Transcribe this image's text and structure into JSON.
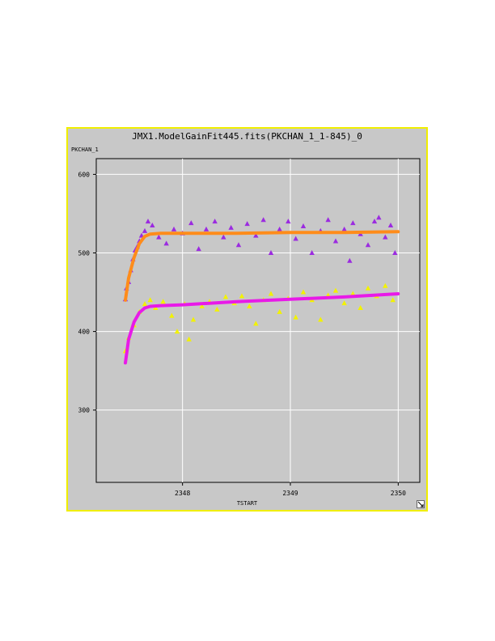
{
  "window": {
    "title": "JMX1.ModelGainFit445.fits(PKCHAN_1_1-845)_0",
    "ylabel": "PKCHAN_1",
    "xlabel": "TSTART"
  },
  "icons": {
    "resize": "resize-corner-icon"
  },
  "colors": {
    "frame_border": "#f0ee00",
    "panel_bg": "#c8c8c8",
    "upper_points": "#9b2be0",
    "upper_fit": "#ff8c1a",
    "lower_points": "#f2f200",
    "lower_fit": "#e81ae8"
  },
  "chart_data": {
    "type": "scatter",
    "title": "JMX1.ModelGainFit445.fits(PKCHAN_1_1-845)_0",
    "xlabel": "TSTART",
    "ylabel": "PKCHAN_1",
    "xlim": [
      2347.2,
      2350.2
    ],
    "ylim": [
      208,
      620
    ],
    "x_ticks": [
      2348,
      2349,
      2350
    ],
    "y_ticks": [
      300,
      400,
      500,
      600
    ],
    "grid": true,
    "series": [
      {
        "color": "#9b2be0",
        "marker": "triangle",
        "points": [
          [
            2347.47,
            441
          ],
          [
            2347.48,
            455
          ],
          [
            2347.5,
            463
          ],
          [
            2347.52,
            478
          ],
          [
            2347.54,
            492
          ],
          [
            2347.56,
            503
          ],
          [
            2347.58,
            508
          ],
          [
            2347.6,
            515
          ],
          [
            2347.62,
            522
          ],
          [
            2347.65,
            528
          ],
          [
            2347.68,
            540
          ],
          [
            2347.72,
            535
          ],
          [
            2347.78,
            520
          ],
          [
            2347.85,
            512
          ],
          [
            2347.92,
            530
          ],
          [
            2348.0,
            525
          ],
          [
            2348.08,
            538
          ],
          [
            2348.15,
            505
          ],
          [
            2348.22,
            530
          ],
          [
            2348.3,
            540
          ],
          [
            2348.38,
            520
          ],
          [
            2348.45,
            532
          ],
          [
            2348.52,
            510
          ],
          [
            2348.6,
            537
          ],
          [
            2348.68,
            522
          ],
          [
            2348.75,
            542
          ],
          [
            2348.82,
            500
          ],
          [
            2348.9,
            530
          ],
          [
            2348.98,
            540
          ],
          [
            2349.05,
            518
          ],
          [
            2349.12,
            534
          ],
          [
            2349.2,
            500
          ],
          [
            2349.28,
            528
          ],
          [
            2349.35,
            542
          ],
          [
            2349.42,
            515
          ],
          [
            2349.5,
            530
          ],
          [
            2349.55,
            490
          ],
          [
            2349.58,
            538
          ],
          [
            2349.65,
            524
          ],
          [
            2349.72,
            510
          ],
          [
            2349.78,
            540
          ],
          [
            2349.82,
            545
          ],
          [
            2349.88,
            520
          ],
          [
            2349.93,
            535
          ],
          [
            2349.97,
            500
          ]
        ]
      },
      {
        "color": "#ff8c1a",
        "marker": "line",
        "points": [
          [
            2347.47,
            440
          ],
          [
            2347.5,
            468
          ],
          [
            2347.55,
            494
          ],
          [
            2347.6,
            512
          ],
          [
            2347.65,
            521
          ],
          [
            2347.7,
            524
          ],
          [
            2347.8,
            525
          ],
          [
            2348.0,
            525
          ],
          [
            2348.5,
            525
          ],
          [
            2349.0,
            526
          ],
          [
            2349.5,
            526
          ],
          [
            2350.0,
            527
          ]
        ]
      },
      {
        "color": "#f2f200",
        "marker": "triangle",
        "points": [
          [
            2347.47,
            375
          ],
          [
            2347.5,
            392
          ],
          [
            2347.55,
            408
          ],
          [
            2347.6,
            425
          ],
          [
            2347.65,
            435
          ],
          [
            2347.7,
            440
          ],
          [
            2347.75,
            430
          ],
          [
            2347.82,
            438
          ],
          [
            2347.9,
            420
          ],
          [
            2347.95,
            400
          ],
          [
            2348.02,
            435
          ],
          [
            2348.06,
            390
          ],
          [
            2348.1,
            415
          ],
          [
            2348.18,
            432
          ],
          [
            2348.25,
            438
          ],
          [
            2348.32,
            428
          ],
          [
            2348.4,
            444
          ],
          [
            2348.48,
            436
          ],
          [
            2348.55,
            445
          ],
          [
            2348.62,
            432
          ],
          [
            2348.68,
            410
          ],
          [
            2348.75,
            440
          ],
          [
            2348.82,
            448
          ],
          [
            2348.9,
            425
          ],
          [
            2348.98,
            442
          ],
          [
            2349.05,
            418
          ],
          [
            2349.12,
            450
          ],
          [
            2349.2,
            440
          ],
          [
            2349.28,
            415
          ],
          [
            2349.35,
            446
          ],
          [
            2349.42,
            452
          ],
          [
            2349.5,
            436
          ],
          [
            2349.58,
            448
          ],
          [
            2349.65,
            430
          ],
          [
            2349.72,
            455
          ],
          [
            2349.8,
            445
          ],
          [
            2349.88,
            458
          ],
          [
            2349.95,
            440
          ]
        ]
      },
      {
        "color": "#e81ae8",
        "marker": "line",
        "points": [
          [
            2347.47,
            360
          ],
          [
            2347.5,
            390
          ],
          [
            2347.55,
            412
          ],
          [
            2347.6,
            424
          ],
          [
            2347.65,
            430
          ],
          [
            2347.7,
            432
          ],
          [
            2347.8,
            433
          ],
          [
            2348.0,
            434
          ],
          [
            2348.5,
            438
          ],
          [
            2349.0,
            441
          ],
          [
            2349.5,
            444
          ],
          [
            2350.0,
            448
          ]
        ]
      }
    ]
  }
}
